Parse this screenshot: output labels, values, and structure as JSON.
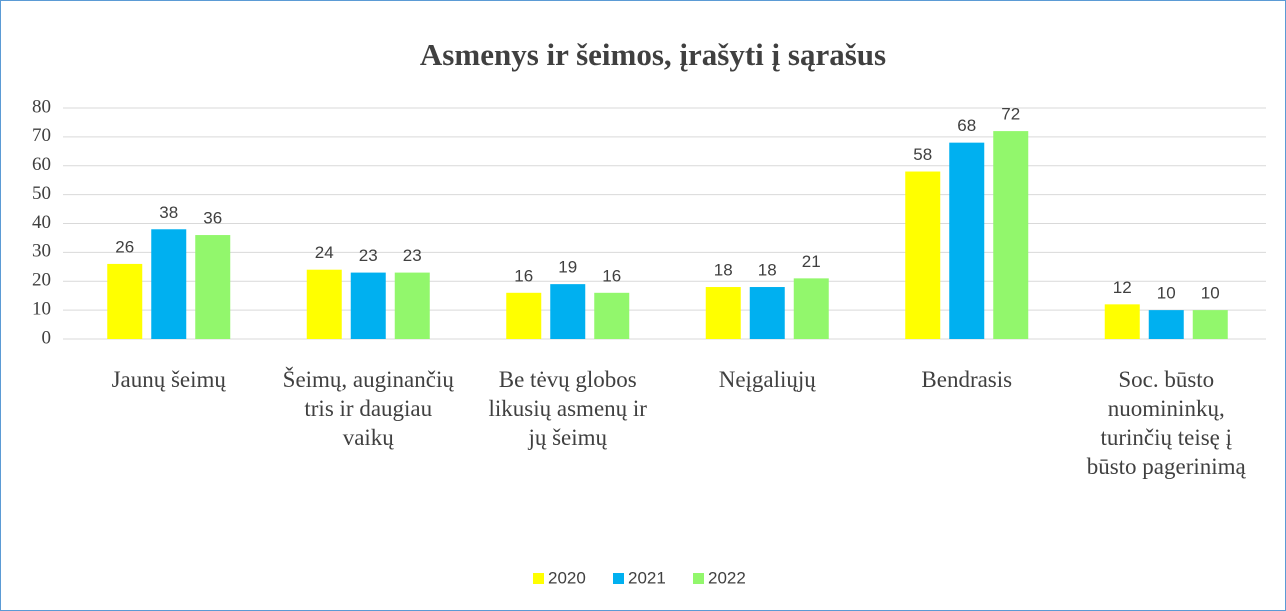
{
  "chart_data": {
    "type": "bar",
    "title": "Asmenys ir šeimos, įrašyti į sąrašus",
    "categories": [
      "Jaunų šeimų",
      "Šeimų, auginančių tris ir daugiau vaikų",
      "Be tėvų globos likusių asmenų ir jų šeimų",
      "Neįgaliųjų",
      "Bendrasis",
      "Soc. būsto nuomininkų, turinčių teisę į būsto pagerinimą"
    ],
    "series": [
      {
        "name": "2020",
        "color": "#ffff00",
        "values": [
          26,
          24,
          16,
          18,
          58,
          12
        ]
      },
      {
        "name": "2021",
        "color": "#00b0f0",
        "values": [
          38,
          23,
          19,
          18,
          68,
          10
        ]
      },
      {
        "name": "2022",
        "color": "#92f76c",
        "values": [
          36,
          23,
          16,
          21,
          72,
          10
        ]
      }
    ],
    "ylim": [
      0,
      80
    ],
    "yticks": [
      0,
      10,
      20,
      30,
      40,
      50,
      60,
      70,
      80
    ],
    "grid": true,
    "legend": "bottom"
  }
}
